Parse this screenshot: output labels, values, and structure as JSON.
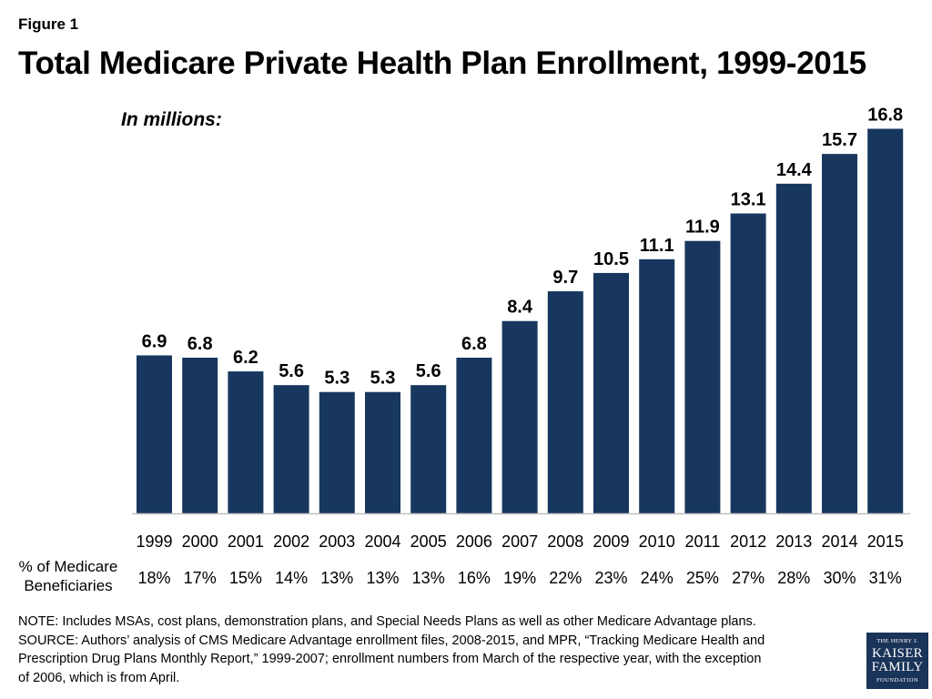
{
  "figure_label": "Figure 1",
  "units_label": "In millions:",
  "pct_header": [
    "% of Medicare",
    "Beneficiaries"
  ],
  "chart_data": {
    "type": "bar",
    "title": "Total Medicare Private Health Plan Enrollment, 1999-2015",
    "categories": [
      "1999",
      "2000",
      "2001",
      "2002",
      "2003",
      "2004",
      "2005",
      "2006",
      "2007",
      "2008",
      "2009",
      "2010",
      "2011",
      "2012",
      "2013",
      "2014",
      "2015"
    ],
    "values": [
      6.9,
      6.8,
      6.2,
      5.6,
      5.3,
      5.3,
      5.6,
      6.8,
      8.4,
      9.7,
      10.5,
      11.1,
      11.9,
      13.1,
      14.4,
      15.7,
      16.8
    ],
    "data_labels": [
      "6.9",
      "6.8",
      "6.2",
      "5.6",
      "5.3",
      "5.3",
      "5.6",
      "6.8",
      "8.4",
      "9.7",
      "10.5",
      "11.1",
      "11.9",
      "13.1",
      "14.4",
      "15.7",
      "16.8"
    ],
    "pct_of_beneficiaries": [
      "18%",
      "17%",
      "15%",
      "14%",
      "13%",
      "13%",
      "13%",
      "16%",
      "19%",
      "22%",
      "23%",
      "24%",
      "25%",
      "27%",
      "28%",
      "30%",
      "31%"
    ],
    "ylim": [
      0,
      17.5
    ],
    "grid": false,
    "bar_color": "#17375e"
  },
  "notes": [
    "NOTE:  Includes MSAs, cost plans, demonstration plans, and Special Needs Plans as well as other Medicare Advantage plans.",
    "SOURCE:  Authors’ analysis of CMS Medicare Advantage enrollment files, 2008-2015, and MPR, “Tracking Medicare Health and",
    "Prescription Drug Plans Monthly Report,” 1999-2007; enrollment numbers from March of the respective year, with the exception",
    "of 2006, which is from April."
  ],
  "logo": [
    "THE HENRY J.",
    "KAISER",
    "FAMILY",
    "FOUNDATION"
  ]
}
